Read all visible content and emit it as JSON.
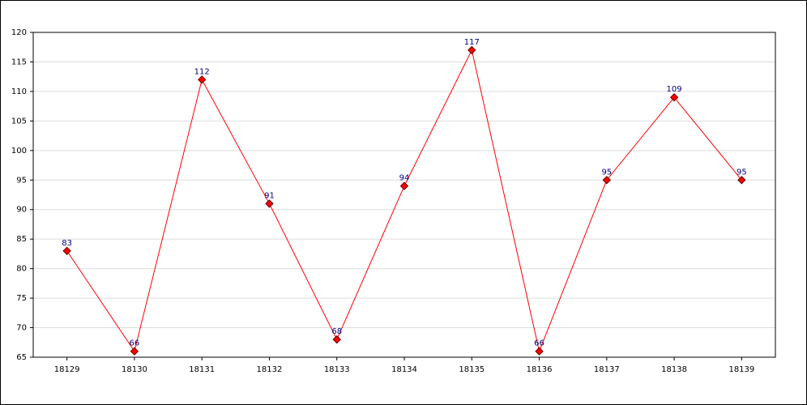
{
  "chart_data": {
    "type": "line",
    "categories": [
      "18129",
      "18130",
      "18131",
      "18132",
      "18133",
      "18134",
      "18135",
      "18136",
      "18137",
      "18138",
      "18139"
    ],
    "series": [
      {
        "color": "#ff0000",
        "values": [
          83,
          66,
          112,
          91,
          68,
          94,
          117,
          66,
          95,
          109,
          95
        ]
      }
    ],
    "ylim": [
      65,
      120
    ],
    "yticks": [
      65,
      70,
      75,
      80,
      85,
      90,
      95,
      100,
      105,
      110,
      115,
      120
    ],
    "grid": true
  }
}
